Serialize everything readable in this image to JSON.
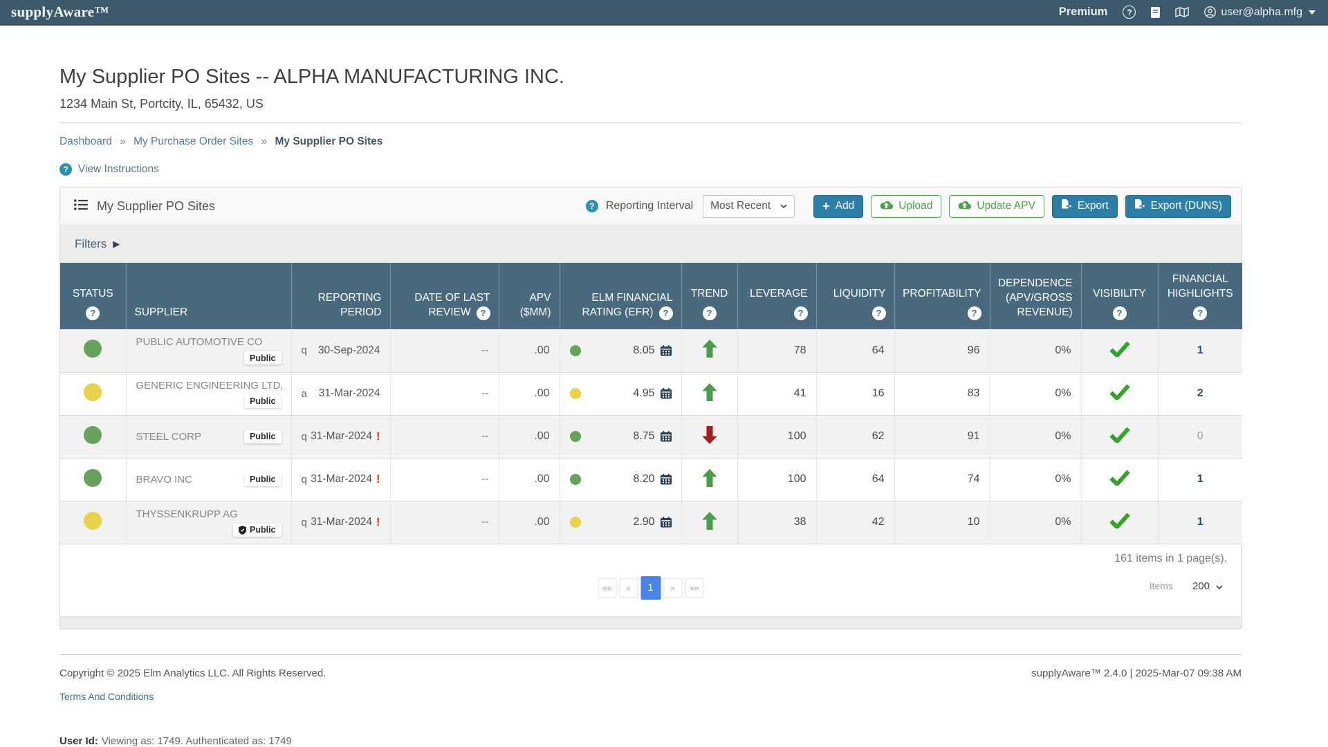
{
  "topbar": {
    "logo": "supplyAware™",
    "premium_label": "Premium",
    "username": "user@alpha.mfg"
  },
  "page": {
    "title": "My Supplier PO Sites -- ALPHA MANUFACTURING INC.",
    "address": "1234 Main St, Portcity, IL, 65432, US",
    "breadcrumb": {
      "items": [
        "Dashboard",
        "My Purchase Order Sites",
        "My Supplier PO Sites"
      ],
      "separator": "»"
    },
    "view_instructions_label": "View Instructions"
  },
  "panel": {
    "title": "My Supplier PO Sites",
    "reporting_interval": {
      "label": "Reporting Interval",
      "value": "Most Recent"
    },
    "buttons": {
      "add": "Add",
      "upload": "Upload",
      "update_apv": "Update APV",
      "export": "Export",
      "export_duns": "Export (DUNS)"
    },
    "filters_label": "Filters"
  },
  "table": {
    "columns": [
      {
        "lines": [
          "STATUS"
        ],
        "help": "below"
      },
      {
        "lines": [
          "SUPPLIER"
        ],
        "help": null
      },
      {
        "lines": [
          "REPORTING",
          "PERIOD"
        ],
        "help": null
      },
      {
        "lines": [
          "DATE OF LAST",
          "REVIEW"
        ],
        "help": "inline"
      },
      {
        "lines": [
          "APV",
          "($MM)"
        ],
        "help": null
      },
      {
        "lines": [
          "ELM FINANCIAL",
          "RATING (EFR)"
        ],
        "help": "inline"
      },
      {
        "lines": [
          "TREND"
        ],
        "help": "below"
      },
      {
        "lines": [
          "LEVERAGE"
        ],
        "help": "below"
      },
      {
        "lines": [
          "LIQUIDITY"
        ],
        "help": "below"
      },
      {
        "lines": [
          "PROFITABILITY"
        ],
        "help": "below"
      },
      {
        "lines": [
          "DEPENDENCE",
          "(APV/GROSS",
          "REVENUE)"
        ],
        "help": null
      },
      {
        "lines": [
          "VISIBILITY"
        ],
        "help": "below"
      },
      {
        "lines": [
          "FINANCIAL",
          "HIGHLIGHTS"
        ],
        "help": "below"
      }
    ],
    "alert_glyph": "!",
    "rows": [
      {
        "status": "green",
        "supplier": "PUBLIC AUTOMOTIVE CO",
        "badge": "Public",
        "badge_shield": false,
        "period_type": "q",
        "period_date": "30-Sep-2024",
        "period_alert": false,
        "last_review": "--",
        "apv": ".00",
        "efr_value": "8.05",
        "efr_status": "green",
        "trend": "up",
        "leverage": "78",
        "liquidity": "64",
        "profitability": "96",
        "dependence": "0%",
        "visibility": "check",
        "highlights": "1",
        "highlights_muted": false
      },
      {
        "status": "yellow",
        "supplier": "GENERIC ENGINEERING LTD.",
        "badge": "Public",
        "badge_shield": false,
        "period_type": "a",
        "period_date": "31-Mar-2024",
        "period_alert": false,
        "last_review": "--",
        "apv": ".00",
        "efr_value": "4.95",
        "efr_status": "yellow",
        "trend": "up",
        "leverage": "41",
        "liquidity": "16",
        "profitability": "83",
        "dependence": "0%",
        "visibility": "check",
        "highlights": "2",
        "highlights_muted": false
      },
      {
        "status": "green",
        "supplier": "STEEL CORP",
        "badge": "Public",
        "badge_shield": false,
        "period_type": "q",
        "period_date": "31-Mar-2024",
        "period_alert": true,
        "last_review": "--",
        "apv": ".00",
        "efr_value": "8.75",
        "efr_status": "green",
        "trend": "down",
        "leverage": "100",
        "liquidity": "62",
        "profitability": "91",
        "dependence": "0%",
        "visibility": "check",
        "highlights": "0",
        "highlights_muted": true
      },
      {
        "status": "green",
        "supplier": "BRAVO INC",
        "badge": "Public",
        "badge_shield": false,
        "period_type": "q",
        "period_date": "31-Mar-2024",
        "period_alert": true,
        "last_review": "--",
        "apv": ".00",
        "efr_value": "8.20",
        "efr_status": "green",
        "trend": "up",
        "leverage": "100",
        "liquidity": "64",
        "profitability": "74",
        "dependence": "0%",
        "visibility": "check",
        "highlights": "1",
        "highlights_muted": false
      },
      {
        "status": "yellow",
        "supplier": "THYSSENKRUPP AG",
        "badge": "Public",
        "badge_shield": true,
        "period_type": "q",
        "period_date": "31-Mar-2024",
        "period_alert": true,
        "last_review": "--",
        "apv": ".00",
        "efr_value": "2.90",
        "efr_status": "yellow",
        "trend": "up",
        "leverage": "38",
        "liquidity": "42",
        "profitability": "10",
        "dependence": "0%",
        "visibility": "check",
        "highlights": "1",
        "highlights_muted": false
      }
    ]
  },
  "pagination": {
    "summary": "161 items in 1 page(s).",
    "buttons": [
      "««",
      "«",
      "1",
      "»",
      "»»"
    ],
    "active": "1",
    "items_label": "Items",
    "items_value": "200"
  },
  "footer": {
    "copyright": "Copyright © 2025 Elm Analytics LLC. All Rights Reserved.",
    "version": "supplyAware™ 2.4.0 | 2025-Mar-07 09:38 AM",
    "terms_label": "Terms And Conditions",
    "user_id_label": "User Id:",
    "user_id_value": "Viewing as: 1749. Authenticated as: 1749"
  },
  "colors": {
    "topbar_bg": "#3c5a6b",
    "table_header_bg": "#49697e",
    "accent_blue": "#2d7ea6",
    "accent_green": "#47a447",
    "status_green": "#67a25a",
    "status_yellow": "#e8d34b",
    "trend_up": "#4e9b4e",
    "trend_down": "#9e2020",
    "check_green": "#35a22d",
    "alert_red": "#e02b27",
    "help_teal": "#2b93b0",
    "pager_active_blue": "#4a82e8"
  }
}
